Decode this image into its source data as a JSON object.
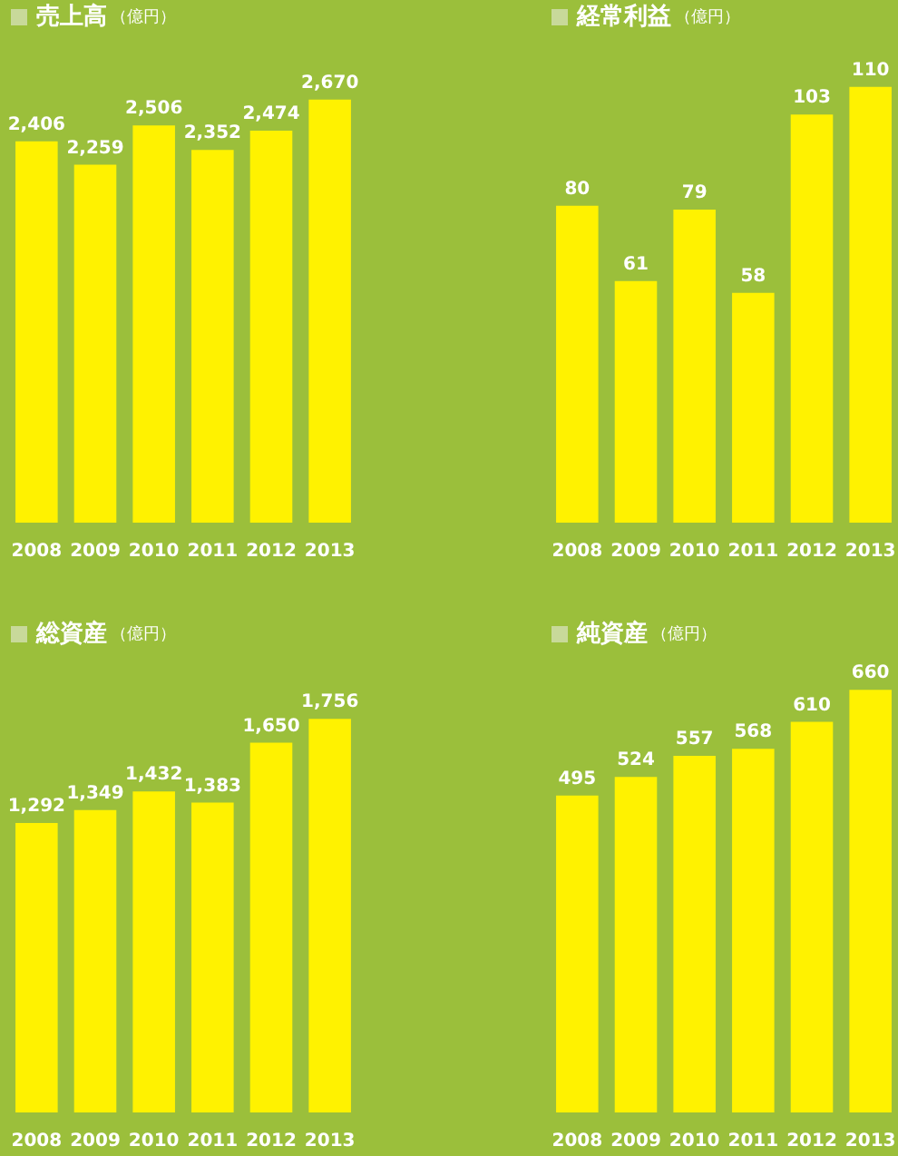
{
  "chart_data": [
    {
      "type": "bar",
      "title": "売上高",
      "subtitle": "（億円）",
      "categories": [
        "2008",
        "2009",
        "2010",
        "2011",
        "2012",
        "2013"
      ],
      "values": [
        2406,
        2259,
        2506,
        2352,
        2474,
        2670
      ],
      "value_labels": [
        "2,406",
        "2,259",
        "2,506",
        "2,352",
        "2,474",
        "2,670"
      ],
      "color": "#fff200",
      "tick_labels": "x"
    },
    {
      "type": "bar",
      "title": "経常利益",
      "subtitle": "（億円）",
      "categories": [
        "2008",
        "2009",
        "2010",
        "2011",
        "2012",
        "2013"
      ],
      "values": [
        80,
        61,
        79,
        58,
        103,
        110
      ],
      "value_labels": [
        "80",
        "61",
        "79",
        "58",
        "103",
        "110"
      ],
      "color": "#fff200",
      "tick_labels": "x"
    },
    {
      "type": "bar",
      "title": "総資産",
      "subtitle": "（億円）",
      "categories": [
        "2008",
        "2009",
        "2010",
        "2011",
        "2012",
        "2013"
      ],
      "values": [
        1292,
        1349,
        1432,
        1383,
        1650,
        1756
      ],
      "value_labels": [
        "1,292",
        "1,349",
        "1,432",
        "1,383",
        "1,650",
        "1,756"
      ],
      "color": "#fff200",
      "tick_labels": "x"
    },
    {
      "type": "bar",
      "title": "純資産",
      "subtitle": "（億円）",
      "categories": [
        "2008",
        "2009",
        "2010",
        "2011",
        "2012",
        "2013"
      ],
      "values": [
        495,
        524,
        557,
        568,
        610,
        660
      ],
      "value_labels": [
        "495",
        "524",
        "557",
        "568",
        "610",
        "660"
      ],
      "color": "#fff200",
      "tick_labels": "x"
    }
  ]
}
